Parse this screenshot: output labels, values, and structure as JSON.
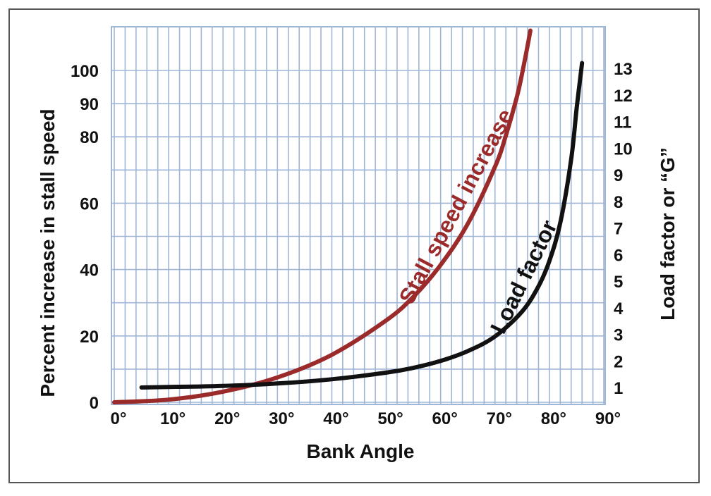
{
  "chart_data": {
    "type": "line",
    "xlabel": "Bank Angle",
    "ylabel_left": "Percent increase in stall speed",
    "ylabel_right": "Load factor or “G”",
    "x_ticks": [
      "0°",
      "10°",
      "20°",
      "30°",
      "40°",
      "50°",
      "60°",
      "70°",
      "80°",
      "90°"
    ],
    "y_left_ticks": [
      0,
      20,
      40,
      60,
      80,
      90,
      100
    ],
    "y_right_ticks": [
      1,
      2,
      3,
      4,
      5,
      6,
      7,
      8,
      9,
      10,
      11,
      12,
      13
    ],
    "xlim": [
      0,
      90
    ],
    "ylim_left": [
      0,
      108
    ],
    "grid": true,
    "colors": {
      "grid": "#9fb6d6",
      "plot_bg": "#ffffff",
      "stall_speed": "#9b2a2a",
      "load_factor": "#111111"
    },
    "series": [
      {
        "name": "Stall speed increase",
        "axis": "left",
        "x": [
          0,
          10,
          20,
          30,
          40,
          50,
          55,
          60,
          65,
          70,
          72,
          74,
          75,
          76,
          76.5
        ],
        "y": [
          0,
          0.8,
          3.2,
          7.5,
          14.3,
          24.7,
          31.8,
          41.4,
          53.8,
          71,
          80.4,
          91.9,
          99.2,
          107.5,
          112
        ]
      },
      {
        "name": "Load factor",
        "axis": "right",
        "x": [
          5,
          10,
          20,
          30,
          40,
          50,
          55,
          60,
          65,
          70,
          75,
          78,
          80,
          82,
          84,
          85,
          86
        ],
        "y": [
          1.0,
          1.02,
          1.06,
          1.15,
          1.31,
          1.56,
          1.74,
          2.0,
          2.37,
          2.92,
          3.86,
          4.81,
          5.76,
          7.19,
          9.57,
          11.47,
          13.2
        ]
      }
    ]
  }
}
